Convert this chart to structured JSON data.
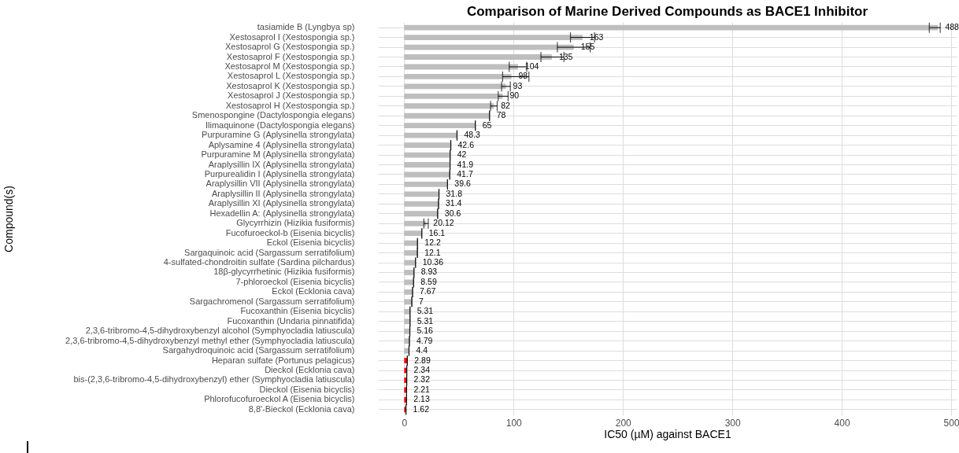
{
  "chart_data": {
    "type": "bar",
    "orientation": "horizontal",
    "title": "Comparison of Marine Derived Compounds as BACE1 Inhibitor",
    "xlabel": "IC50 (µM) against BACE1",
    "ylabel": "Compound(s)",
    "categories": [
      "tasiamide B (Lyngbya sp)",
      "Xestosaprol I (Xestospongia sp.)",
      "Xestosaprol G (Xestospongia sp.)",
      "Xestosaprol F (Xestospongia sp.)",
      "Xestosaprol M (Xestospongia sp.)",
      "Xestosaprol L (Xestospongia sp.)",
      "Xestosaprol K (Xestospongia sp.)",
      "Xestosaprol J (Xestospongia sp.)",
      "Xestosaprol H (Xestospongia sp.)",
      "Smenospongine (Dactylospongia elegans)",
      "Ilimaquinone (Dactylospongia elegans)",
      "Purpuramine G (Aplysinella strongylata)",
      "Aplysamine 4 (Aplysinella strongylata)",
      "Purpuramine M (Aplysinella strongylata)",
      "Araplysillin IX (Aplysinella strongylata)",
      "Purpurealidin I (Aplysinella strongylata)",
      "Araplysillin VII (Aplysinella strongylata)",
      "Araplysillin II (Aplysinella strongylata)",
      "Araplysillin XI (Aplysinella strongylata)",
      "Hexadellin A: (Aplysinella strongylata)",
      "Glycyrrhizin (Hizikia fusiformis)",
      "Fucofuroeckol-b (Eisenia bicyclis)",
      "Eckol (Eisenia bicyclis)",
      "Sargaquinoic acid (Sargassum serratifolium)",
      "4-sulfated-chondroitin sulfate (Sardina pilchardus)",
      "18β-glycyrrhetinic (Hizikia fusiformis)",
      "7-phloroeckol (Eisenia bicyclis)",
      "Eckol (Ecklonia cava)",
      "Sargachromenol (Sargassum serratifolium)",
      "Fucoxanthin (Eisenia bicyclis)",
      "Fucoxanthin  (Undaria pinnatifida)",
      "2,3,6-tribromo-4,5-dihydroxybenzyl alcohol (Symphyocladia latiuscula)",
      "2,3,6-tribromo-4,5-dihydroxybenzyl methyl ether (Symphyocladia latiuscula)",
      "Sargahydroquinoic acid (Sargassum serratifolium)",
      "Heparan sulfate (Portunus pelagicus)",
      "Dieckol (Ecklonia cava)",
      "bis-(2,3,6-tribromo-4,5-dihydroxybenzyl) ether  (Symphyocladia latiuscula)",
      "Dieckol (Eisenia bicyclis)",
      "Phlorofucofuroeckol A (Eisenia bicyclis)",
      "8,8'-Bieckol (Ecklonia cava)"
    ],
    "values": [
      488,
      163,
      155,
      135,
      104,
      98,
      93,
      90,
      82,
      78,
      65,
      48.3,
      42.6,
      42,
      41.9,
      41.7,
      39.6,
      31.8,
      31.4,
      30.6,
      20.12,
      16.1,
      12.2,
      12.1,
      10.36,
      8.93,
      8.59,
      7.67,
      7,
      5.31,
      5.31,
      5.16,
      4.79,
      4.4,
      2.89,
      2.34,
      2.32,
      2.21,
      2.13,
      1.62
    ],
    "errors": [
      [
        480,
        490
      ],
      [
        152,
        174
      ],
      [
        140,
        170
      ],
      [
        125,
        146
      ],
      [
        96,
        112
      ],
      [
        90,
        114
      ],
      [
        89,
        97
      ],
      [
        86,
        95
      ],
      [
        79,
        85
      ],
      0,
      0,
      0,
      0,
      0,
      0,
      0,
      0,
      0,
      0,
      0,
      [
        18,
        22
      ],
      0,
      0,
      0,
      0,
      0,
      0,
      0,
      0,
      0,
      0,
      0,
      0,
      0,
      0,
      0,
      0,
      0,
      0,
      0
    ],
    "colors": [
      "#bebebe",
      "#bebebe",
      "#bebebe",
      "#bebebe",
      "#bebebe",
      "#bebebe",
      "#bebebe",
      "#bebebe",
      "#bebebe",
      "#bebebe",
      "#bebebe",
      "#bebebe",
      "#bebebe",
      "#bebebe",
      "#bebebe",
      "#bebebe",
      "#bebebe",
      "#bebebe",
      "#bebebe",
      "#bebebe",
      "#bebebe",
      "#bebebe",
      "#bebebe",
      "#bebebe",
      "#bebebe",
      "#bebebe",
      "#bebebe",
      "#bebebe",
      "#bebebe",
      "#bebebe",
      "#bebebe",
      "#bebebe",
      "#bebebe",
      "#bebebe",
      "#ff0000",
      "#ff0000",
      "#ff0000",
      "#ff0000",
      "#ff0000",
      "#ff0000"
    ],
    "xlim": [
      -24,
      505
    ],
    "xticks": [
      0,
      100,
      200,
      300,
      400,
      500
    ],
    "grid": true,
    "data_labels": true,
    "legend": false
  }
}
